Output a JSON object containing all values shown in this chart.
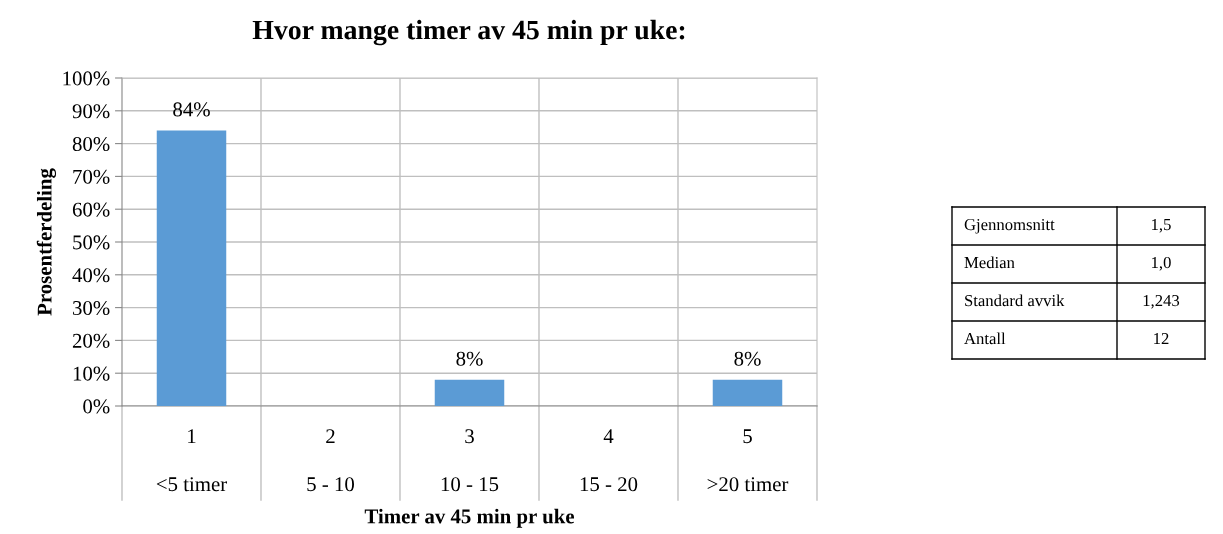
{
  "chart_data": {
    "type": "bar",
    "title": "Hvor mange timer av 45 min pr uke:",
    "xlabel": "Timer av 45 min pr uke",
    "ylabel": "Prosentferdeling",
    "categories": [
      "1",
      "2",
      "3",
      "4",
      "5"
    ],
    "values": [
      84,
      0,
      8,
      0,
      8
    ],
    "color": "#5b9bd5",
    "value_labels": [
      "84%",
      null,
      "8%",
      null,
      "8%"
    ],
    "ylim": [
      0,
      100
    ],
    "yticks": [
      {
        "value": 0,
        "label": "0%"
      },
      {
        "value": 10,
        "label": "10%"
      },
      {
        "value": 20,
        "label": "20%"
      },
      {
        "value": 30,
        "label": "30%"
      },
      {
        "value": 40,
        "label": "40%"
      },
      {
        "value": 50,
        "label": "50%"
      },
      {
        "value": 60,
        "label": "60%"
      },
      {
        "value": 70,
        "label": "70%"
      },
      {
        "value": 80,
        "label": "80%"
      },
      {
        "value": 90,
        "label": "90%"
      },
      {
        "value": 100,
        "label": "100%"
      }
    ],
    "grid": true,
    "annotations": [
      "<5 timer",
      "5 - 10",
      "10 - 15",
      "15 - 20",
      ">20 timer",
      "Gjennomsnitt",
      "1,5",
      "Median",
      "1,0",
      "Standard avvik",
      "1,243",
      "Antall",
      "12"
    ]
  }
}
